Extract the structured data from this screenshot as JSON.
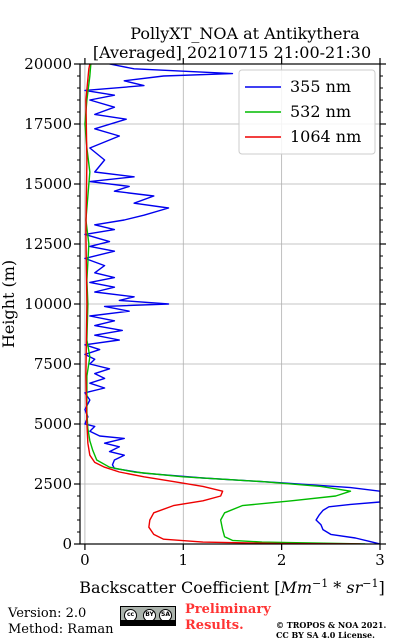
{
  "chart_data": {
    "type": "line",
    "title": "PollyXT_NOA at Antikythera",
    "subtitle": "[Averaged] 20210715 21:00-21:30",
    "xlabel_prefix": "Backscatter Coefficient [",
    "xlabel_unit_base": "Mm",
    "xlabel_unit_exp1": "−1",
    "xlabel_unit_mid": " * ",
    "xlabel_unit_base2": "sr",
    "xlabel_unit_exp2": "−1",
    "xlabel_suffix": "]",
    "ylabel": "Height (m)",
    "xlim": [
      -0.05,
      3.0
    ],
    "ylim": [
      0,
      20000
    ],
    "xticks": [
      0,
      1,
      2,
      3
    ],
    "xtick_labels": [
      "0",
      "1",
      "2",
      "3"
    ],
    "yticks": [
      0,
      2500,
      5000,
      7500,
      10000,
      12500,
      15000,
      17500,
      20000
    ],
    "ytick_labels": [
      "0",
      "2500",
      "5000",
      "7500",
      "10000",
      "12500",
      "15000",
      "17500",
      "20000"
    ],
    "grid": true,
    "legend_position": "top-right",
    "series": [
      {
        "name": "355 nm",
        "color": "#0000ee",
        "points": [
          [
            3.0,
            0
          ],
          [
            2.9,
            100
          ],
          [
            2.75,
            250
          ],
          [
            2.5,
            400
          ],
          [
            2.42,
            600
          ],
          [
            2.4,
            800
          ],
          [
            2.35,
            1000
          ],
          [
            2.38,
            1200
          ],
          [
            2.42,
            1400
          ],
          [
            2.48,
            1550
          ],
          [
            2.7,
            1650
          ],
          [
            3.0,
            1750
          ],
          [
            3.0,
            2200
          ],
          [
            2.7,
            2350
          ],
          [
            2.0,
            2550
          ],
          [
            1.2,
            2750
          ],
          [
            0.6,
            2950
          ],
          [
            0.3,
            3150
          ],
          [
            0.28,
            3300
          ],
          [
            0.3,
            3500
          ],
          [
            0.4,
            3700
          ],
          [
            0.25,
            3850
          ],
          [
            0.35,
            4050
          ],
          [
            0.2,
            4200
          ],
          [
            0.4,
            4400
          ],
          [
            0.15,
            4500
          ],
          [
            0.05,
            4700
          ],
          [
            0.1,
            4900
          ],
          [
            0.0,
            5000
          ],
          [
            0.03,
            5300
          ],
          [
            0.0,
            5600
          ],
          [
            0.05,
            6000
          ],
          [
            0.0,
            6300
          ],
          [
            0.2,
            6500
          ],
          [
            0.05,
            6700
          ],
          [
            0.2,
            6900
          ],
          [
            0.1,
            7100
          ],
          [
            0.25,
            7300
          ],
          [
            0.05,
            7500
          ],
          [
            0.1,
            7700
          ],
          [
            0.0,
            7900
          ],
          [
            0.15,
            8100
          ],
          [
            0.0,
            8300
          ],
          [
            0.35,
            8500
          ],
          [
            0.1,
            8700
          ],
          [
            0.38,
            8900
          ],
          [
            0.1,
            9100
          ],
          [
            0.3,
            9300
          ],
          [
            0.05,
            9500
          ],
          [
            0.45,
            9700
          ],
          [
            0.2,
            9900
          ],
          [
            0.85,
            10000
          ],
          [
            0.35,
            10150
          ],
          [
            0.5,
            10300
          ],
          [
            0.1,
            10500
          ],
          [
            0.3,
            10700
          ],
          [
            0.05,
            10900
          ],
          [
            0.3,
            11100
          ],
          [
            0.1,
            11300
          ],
          [
            0.2,
            11600
          ],
          [
            0.0,
            11900
          ],
          [
            0.3,
            12200
          ],
          [
            0.05,
            12400
          ],
          [
            0.25,
            12600
          ],
          [
            0.0,
            12900
          ],
          [
            0.3,
            13100
          ],
          [
            0.1,
            13300
          ],
          [
            0.4,
            13500
          ],
          [
            0.6,
            13700
          ],
          [
            0.85,
            14000
          ],
          [
            0.5,
            14200
          ],
          [
            0.7,
            14500
          ],
          [
            0.3,
            14700
          ],
          [
            0.45,
            14900
          ],
          [
            0.05,
            15100
          ],
          [
            0.5,
            15300
          ],
          [
            0.1,
            15500
          ],
          [
            0.2,
            16000
          ],
          [
            0.05,
            16500
          ],
          [
            0.35,
            17000
          ],
          [
            0.1,
            17300
          ],
          [
            0.42,
            17700
          ],
          [
            0.1,
            17900
          ],
          [
            0.3,
            18200
          ],
          [
            0.05,
            18500
          ],
          [
            0.3,
            18700
          ],
          [
            0.0,
            18900
          ],
          [
            0.6,
            19100
          ],
          [
            0.4,
            19300
          ],
          [
            0.8,
            19500
          ],
          [
            1.5,
            19600
          ],
          [
            1.0,
            19700
          ],
          [
            0.5,
            19800
          ],
          [
            0.25,
            20000
          ]
        ]
      },
      {
        "name": "532 nm",
        "color": "#00bb00",
        "points": [
          [
            2.85,
            0
          ],
          [
            2.5,
            30
          ],
          [
            1.8,
            80
          ],
          [
            1.5,
            150
          ],
          [
            1.42,
            300
          ],
          [
            1.4,
            600
          ],
          [
            1.38,
            1000
          ],
          [
            1.42,
            1300
          ],
          [
            1.6,
            1600
          ],
          [
            2.1,
            1800
          ],
          [
            2.55,
            2000
          ],
          [
            2.7,
            2200
          ],
          [
            2.4,
            2400
          ],
          [
            1.8,
            2600
          ],
          [
            1.0,
            2800
          ],
          [
            0.5,
            3000
          ],
          [
            0.25,
            3200
          ],
          [
            0.12,
            3500
          ],
          [
            0.08,
            3900
          ],
          [
            0.05,
            4300
          ],
          [
            0.03,
            4800
          ],
          [
            0.02,
            5500
          ],
          [
            0.02,
            7000
          ],
          [
            0.05,
            7800
          ],
          [
            0.02,
            8500
          ],
          [
            0.03,
            10000
          ],
          [
            0.02,
            11000
          ],
          [
            0.04,
            12500
          ],
          [
            0.01,
            13500
          ],
          [
            0.03,
            14500
          ],
          [
            0.05,
            15500
          ],
          [
            0.02,
            16500
          ],
          [
            0.0,
            17500
          ],
          [
            0.02,
            18500
          ],
          [
            0.05,
            19500
          ],
          [
            0.06,
            20000
          ]
        ]
      },
      {
        "name": "1064 nm",
        "color": "#ee0000",
        "points": [
          [
            2.8,
            0
          ],
          [
            2.0,
            20
          ],
          [
            1.2,
            80
          ],
          [
            0.8,
            200
          ],
          [
            0.7,
            400
          ],
          [
            0.65,
            700
          ],
          [
            0.66,
            1000
          ],
          [
            0.7,
            1300
          ],
          [
            0.9,
            1600
          ],
          [
            1.2,
            1800
          ],
          [
            1.38,
            2000
          ],
          [
            1.4,
            2200
          ],
          [
            1.2,
            2400
          ],
          [
            0.9,
            2600
          ],
          [
            0.6,
            2800
          ],
          [
            0.35,
            3000
          ],
          [
            0.2,
            3200
          ],
          [
            0.1,
            3400
          ],
          [
            0.05,
            3700
          ],
          [
            0.03,
            4200
          ],
          [
            0.02,
            5000
          ],
          [
            0.01,
            7000
          ],
          [
            0.02,
            10000
          ],
          [
            0.01,
            13000
          ],
          [
            0.02,
            16000
          ],
          [
            0.01,
            18500
          ],
          [
            0.04,
            19800
          ],
          [
            0.05,
            20000
          ]
        ]
      }
    ]
  },
  "footer": {
    "version": "Version: 2.0",
    "method": "Method: Raman",
    "cc_label": "cc",
    "cc_by": "BY",
    "cc_sa": "SA",
    "preliminary_line1": "Preliminary",
    "preliminary_line2": "Results.",
    "copyright_line1": "© TROPOS & NOA 2021.",
    "copyright_line2": "CC BY SA 4.0 License."
  }
}
